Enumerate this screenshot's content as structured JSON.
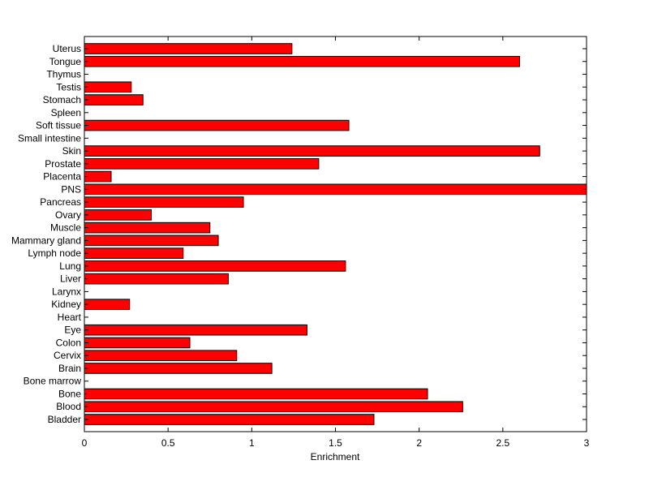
{
  "chart_data": {
    "type": "bar",
    "orientation": "horizontal",
    "categories": [
      "Bladder",
      "Blood",
      "Bone",
      "Bone marrow",
      "Brain",
      "Cervix",
      "Colon",
      "Eye",
      "Heart",
      "Kidney",
      "Larynx",
      "Liver",
      "Lung",
      "Lymph node",
      "Mammary gland",
      "Muscle",
      "Ovary",
      "Pancreas",
      "PNS",
      "Placenta",
      "Prostate",
      "Skin",
      "Small intestine",
      "Soft tissue",
      "Spleen",
      "Stomach",
      "Testis",
      "Thymus",
      "Tongue",
      "Uterus"
    ],
    "values": [
      1.73,
      2.26,
      2.05,
      0,
      1.12,
      0.91,
      0.63,
      1.33,
      0,
      0.27,
      0,
      0.86,
      1.56,
      0.59,
      0.8,
      0.75,
      0.4,
      0.95,
      3.0,
      0.16,
      1.4,
      2.72,
      0,
      1.58,
      0,
      0.35,
      0.28,
      0,
      2.6,
      1.24
    ],
    "xlabel": "Enrichment",
    "ylabel": "",
    "xlim": [
      0,
      3
    ],
    "xticks": [
      "0",
      "0.5",
      "1",
      "1.5",
      "2",
      "2.5",
      "3"
    ],
    "grid": false,
    "bar_color": "#ff0000",
    "bar_edge_color": "#000000"
  }
}
